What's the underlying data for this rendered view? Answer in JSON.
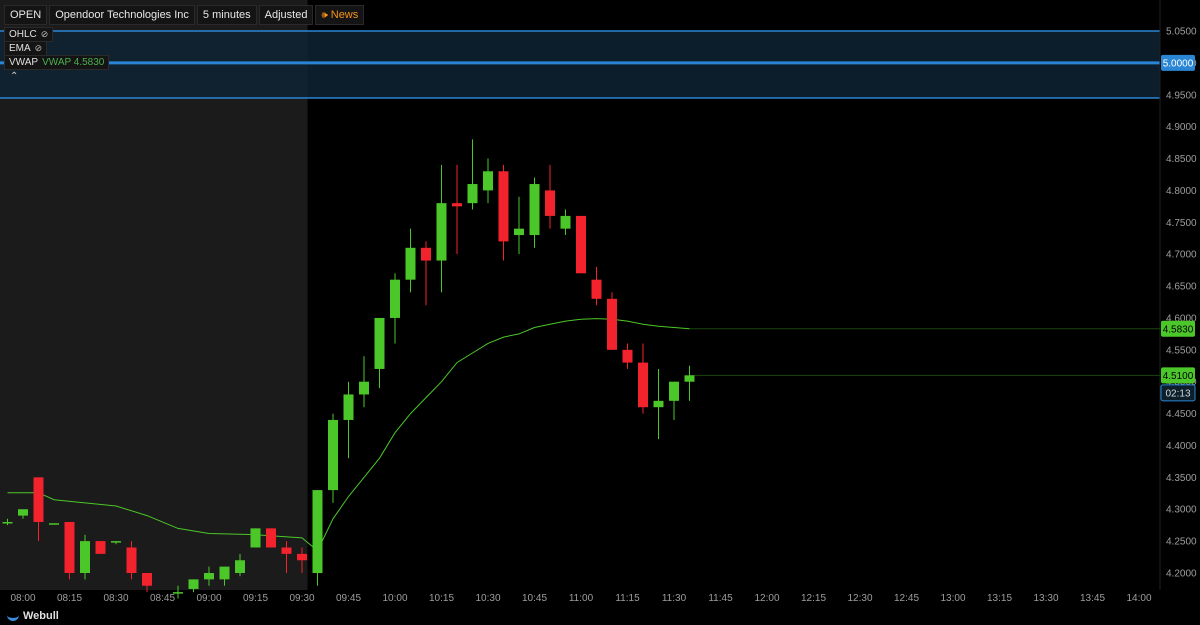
{
  "header": {
    "ticker": "OPEN",
    "company": "Opendoor Technologies Inc",
    "interval": "5 minutes",
    "adjust": "Adjusted",
    "news": "News"
  },
  "indicators": [
    {
      "label": "OHLC",
      "icon": "eye-hidden-icon"
    },
    {
      "label": "EMA",
      "icon": "eye-hidden-icon"
    },
    {
      "label": "VWAP",
      "value": "VWAP 4.5830"
    }
  ],
  "footer": {
    "brand": "Webull"
  },
  "colors": {
    "up": "#4cc72a",
    "down": "#f2232c",
    "vwap": "#4cc72a",
    "zone": "#0e2233",
    "zone_line": "#2a86d4",
    "premarket_bg": "#1b1b1b",
    "axis_text": "#9e9e9e"
  },
  "chart_data": {
    "type": "candlestick",
    "y_ticks": [
      "4.2000",
      "4.2500",
      "4.3000",
      "4.3500",
      "4.4000",
      "4.4500",
      "4.5000",
      "4.5500",
      "4.6000",
      "4.6500",
      "4.7000",
      "4.7500",
      "4.8000",
      "4.8500",
      "4.9000",
      "4.9500",
      "5.0000",
      "5.0500"
    ],
    "ylim": [
      4.18,
      5.07
    ],
    "x_ticks": [
      "08:00",
      "08:15",
      "08:30",
      "08:45",
      "09:00",
      "09:15",
      "09:30",
      "09:45",
      "10:00",
      "10:15",
      "10:30",
      "10:45",
      "11:00",
      "11:15",
      "11:30",
      "11:45",
      "12:00",
      "12:15",
      "12:30",
      "12:45",
      "13:00",
      "13:15",
      "13:30",
      "13:45",
      "14:00"
    ],
    "x_start": "07:55",
    "premarket_end": "09:35",
    "zone": {
      "low": 4.945,
      "high": 5.05,
      "mid": 5.0,
      "mid_label": "5.0000"
    },
    "price_labels": [
      {
        "value": 4.583,
        "text": "4.5830",
        "kind": "vwap"
      },
      {
        "value": 4.51,
        "text": "4.5100",
        "kind": "last"
      },
      {
        "value": 4.4825,
        "text": "02:13",
        "kind": "timer"
      }
    ],
    "candles": [
      {
        "t": "07:55",
        "o": 4.28,
        "h": 4.285,
        "l": 4.275,
        "c": 4.28
      },
      {
        "t": "08:00",
        "o": 4.29,
        "h": 4.295,
        "l": 4.285,
        "c": 4.3
      },
      {
        "t": "08:05",
        "o": 4.35,
        "h": 4.35,
        "l": 4.25,
        "c": 4.28
      },
      {
        "t": "08:10",
        "o": 4.278,
        "h": 4.278,
        "l": 4.278,
        "c": 4.278
      },
      {
        "t": "08:15",
        "o": 4.28,
        "h": 4.28,
        "l": 4.19,
        "c": 4.2
      },
      {
        "t": "08:20",
        "o": 4.2,
        "h": 4.26,
        "l": 4.19,
        "c": 4.25
      },
      {
        "t": "08:25",
        "o": 4.25,
        "h": 4.25,
        "l": 4.23,
        "c": 4.23
      },
      {
        "t": "08:30",
        "o": 4.25,
        "h": 4.25,
        "l": 4.245,
        "c": 4.25
      },
      {
        "t": "08:35",
        "o": 4.24,
        "h": 4.25,
        "l": 4.19,
        "c": 4.2
      },
      {
        "t": "08:40",
        "o": 4.2,
        "h": 4.2,
        "l": 4.17,
        "c": 4.18
      },
      {
        "t": "08:50",
        "o": 4.17,
        "h": 4.18,
        "l": 4.16,
        "c": 4.17
      },
      {
        "t": "08:55",
        "o": 4.175,
        "h": 4.19,
        "l": 4.17,
        "c": 4.19
      },
      {
        "t": "09:00",
        "o": 4.19,
        "h": 4.21,
        "l": 4.18,
        "c": 4.2
      },
      {
        "t": "09:05",
        "o": 4.19,
        "h": 4.21,
        "l": 4.18,
        "c": 4.21
      },
      {
        "t": "09:10",
        "o": 4.2,
        "h": 4.23,
        "l": 4.195,
        "c": 4.22
      },
      {
        "t": "09:15",
        "o": 4.24,
        "h": 4.27,
        "l": 4.24,
        "c": 4.27
      },
      {
        "t": "09:20",
        "o": 4.27,
        "h": 4.27,
        "l": 4.24,
        "c": 4.24
      },
      {
        "t": "09:25",
        "o": 4.24,
        "h": 4.25,
        "l": 4.2,
        "c": 4.23
      },
      {
        "t": "09:30",
        "o": 4.23,
        "h": 4.24,
        "l": 4.2,
        "c": 4.22
      },
      {
        "t": "09:35",
        "o": 4.2,
        "h": 4.33,
        "l": 4.18,
        "c": 4.33
      },
      {
        "t": "09:40",
        "o": 4.33,
        "h": 4.45,
        "l": 4.31,
        "c": 4.44
      },
      {
        "t": "09:45",
        "o": 4.44,
        "h": 4.5,
        "l": 4.38,
        "c": 4.48
      },
      {
        "t": "09:50",
        "o": 4.48,
        "h": 4.54,
        "l": 4.46,
        "c": 4.5
      },
      {
        "t": "09:55",
        "o": 4.52,
        "h": 4.6,
        "l": 4.49,
        "c": 4.6
      },
      {
        "t": "10:00",
        "o": 4.6,
        "h": 4.67,
        "l": 4.56,
        "c": 4.66
      },
      {
        "t": "10:05",
        "o": 4.66,
        "h": 4.74,
        "l": 4.64,
        "c": 4.71
      },
      {
        "t": "10:10",
        "o": 4.71,
        "h": 4.72,
        "l": 4.62,
        "c": 4.69
      },
      {
        "t": "10:15",
        "o": 4.69,
        "h": 4.84,
        "l": 4.64,
        "c": 4.78
      },
      {
        "t": "10:20",
        "o": 4.78,
        "h": 4.84,
        "l": 4.7,
        "c": 4.775
      },
      {
        "t": "10:25",
        "o": 4.78,
        "h": 4.88,
        "l": 4.77,
        "c": 4.81
      },
      {
        "t": "10:30",
        "o": 4.8,
        "h": 4.85,
        "l": 4.78,
        "c": 4.83
      },
      {
        "t": "10:35",
        "o": 4.83,
        "h": 4.84,
        "l": 4.69,
        "c": 4.72
      },
      {
        "t": "10:40",
        "o": 4.73,
        "h": 4.79,
        "l": 4.7,
        "c": 4.74
      },
      {
        "t": "10:45",
        "o": 4.73,
        "h": 4.82,
        "l": 4.71,
        "c": 4.81
      },
      {
        "t": "10:50",
        "o": 4.8,
        "h": 4.84,
        "l": 4.74,
        "c": 4.76
      },
      {
        "t": "10:55",
        "o": 4.74,
        "h": 4.77,
        "l": 4.73,
        "c": 4.76
      },
      {
        "t": "11:00",
        "o": 4.76,
        "h": 4.76,
        "l": 4.67,
        "c": 4.67
      },
      {
        "t": "11:05",
        "o": 4.66,
        "h": 4.68,
        "l": 4.62,
        "c": 4.63
      },
      {
        "t": "11:10",
        "o": 4.63,
        "h": 4.64,
        "l": 4.55,
        "c": 4.55
      },
      {
        "t": "11:15",
        "o": 4.55,
        "h": 4.56,
        "l": 4.52,
        "c": 4.53
      },
      {
        "t": "11:20",
        "o": 4.53,
        "h": 4.56,
        "l": 4.45,
        "c": 4.46
      },
      {
        "t": "11:25",
        "o": 4.46,
        "h": 4.52,
        "l": 4.41,
        "c": 4.47
      },
      {
        "t": "11:30",
        "o": 4.47,
        "h": 4.5,
        "l": 4.44,
        "c": 4.5
      },
      {
        "t": "11:35",
        "o": 4.5,
        "h": 4.525,
        "l": 4.47,
        "c": 4.51
      }
    ],
    "vwap_line": [
      {
        "t": "07:55",
        "v": 4.326
      },
      {
        "t": "08:05",
        "v": 4.326
      },
      {
        "t": "08:10",
        "v": 4.315
      },
      {
        "t": "08:20",
        "v": 4.31
      },
      {
        "t": "08:30",
        "v": 4.305
      },
      {
        "t": "08:40",
        "v": 4.29
      },
      {
        "t": "08:50",
        "v": 4.27
      },
      {
        "t": "09:00",
        "v": 4.262
      },
      {
        "t": "09:15",
        "v": 4.26
      },
      {
        "t": "09:30",
        "v": 4.255
      },
      {
        "t": "09:35",
        "v": 4.235
      },
      {
        "t": "09:40",
        "v": 4.285
      },
      {
        "t": "09:45",
        "v": 4.32
      },
      {
        "t": "09:50",
        "v": 4.35
      },
      {
        "t": "09:55",
        "v": 4.38
      },
      {
        "t": "10:00",
        "v": 4.42
      },
      {
        "t": "10:05",
        "v": 4.45
      },
      {
        "t": "10:10",
        "v": 4.475
      },
      {
        "t": "10:15",
        "v": 4.5
      },
      {
        "t": "10:20",
        "v": 4.53
      },
      {
        "t": "10:25",
        "v": 4.545
      },
      {
        "t": "10:30",
        "v": 4.56
      },
      {
        "t": "10:35",
        "v": 4.57
      },
      {
        "t": "10:40",
        "v": 4.575
      },
      {
        "t": "10:45",
        "v": 4.585
      },
      {
        "t": "10:50",
        "v": 4.59
      },
      {
        "t": "10:55",
        "v": 4.595
      },
      {
        "t": "11:00",
        "v": 4.598
      },
      {
        "t": "11:05",
        "v": 4.599
      },
      {
        "t": "11:10",
        "v": 4.598
      },
      {
        "t": "11:15",
        "v": 4.595
      },
      {
        "t": "11:20",
        "v": 4.59
      },
      {
        "t": "11:25",
        "v": 4.587
      },
      {
        "t": "11:30",
        "v": 4.585
      },
      {
        "t": "11:35",
        "v": 4.583
      }
    ]
  }
}
